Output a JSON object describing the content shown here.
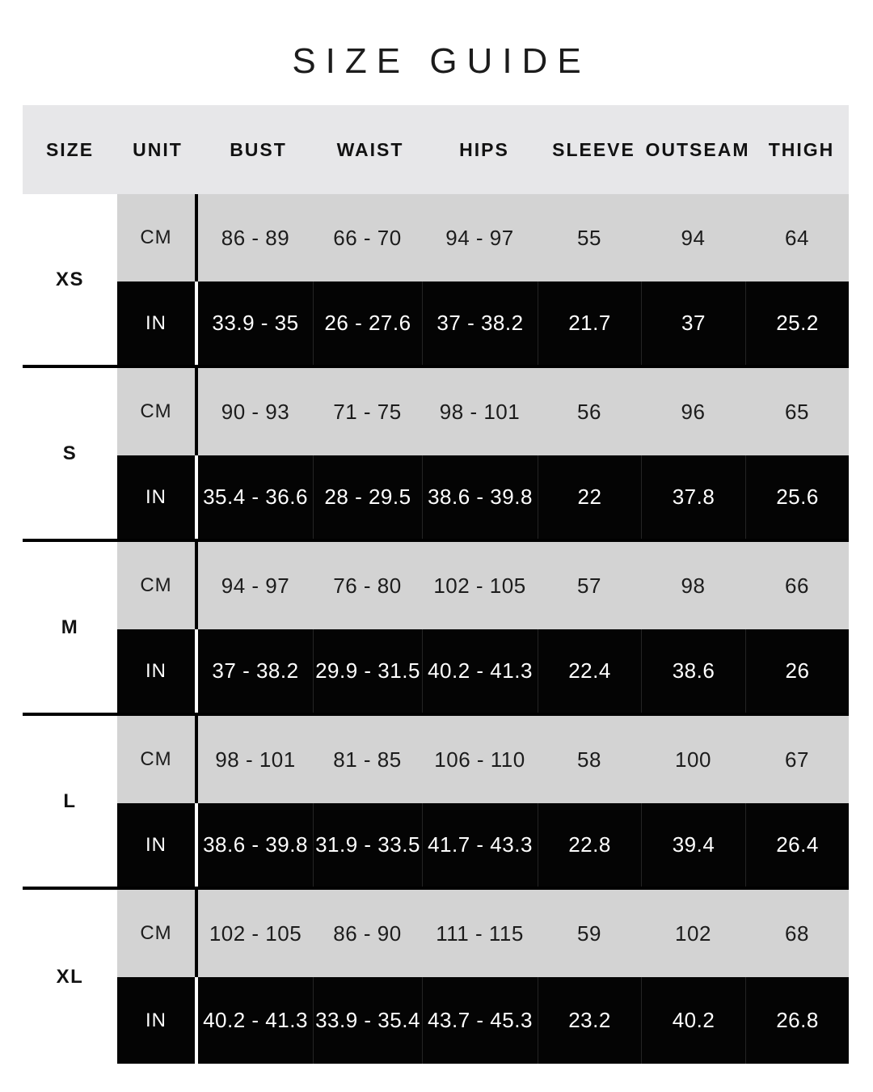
{
  "title": "SIZE GUIDE",
  "table": {
    "columns": [
      "SIZE",
      "UNIT",
      "BUST",
      "WAIST",
      "HIPS",
      "SLEEVE",
      "OUTSEAM",
      "THIGH"
    ],
    "unit_labels": {
      "cm": "CM",
      "in": "IN"
    },
    "sizes": [
      {
        "label": "XS",
        "cm": [
          "86 - 89",
          "66 - 70",
          "94 - 97",
          "55",
          "94",
          "64"
        ],
        "in": [
          "33.9 - 35",
          "26 - 27.6",
          "37 - 38.2",
          "21.7",
          "37",
          "25.2"
        ]
      },
      {
        "label": "S",
        "cm": [
          "90 - 93",
          "71 - 75",
          "98 - 101",
          "56",
          "96",
          "65"
        ],
        "in": [
          "35.4 - 36.6",
          "28 - 29.5",
          "38.6 - 39.8",
          "22",
          "37.8",
          "25.6"
        ]
      },
      {
        "label": "M",
        "cm": [
          "94 - 97",
          "76 - 80",
          "102 - 105",
          "57",
          "98",
          "66"
        ],
        "in": [
          "37 - 38.2",
          "29.9 - 31.5",
          "40.2 - 41.3",
          "22.4",
          "38.6",
          "26"
        ]
      },
      {
        "label": "L",
        "cm": [
          "98 - 101",
          "81 - 85",
          "106 - 110",
          "58",
          "100",
          "67"
        ],
        "in": [
          "38.6 - 39.8",
          "31.9 - 33.5",
          "41.7 - 43.3",
          "22.8",
          "39.4",
          "26.4"
        ]
      },
      {
        "label": "XL",
        "cm": [
          "102 - 105",
          "86 - 90",
          "111 - 115",
          "59",
          "102",
          "68"
        ],
        "in": [
          "40.2 - 41.3",
          "33.9 - 35.4",
          "43.7 - 45.3",
          "23.2",
          "40.2",
          "26.8"
        ]
      }
    ]
  },
  "colors": {
    "page_bg": "#ffffff",
    "header_bg": "#e7e7e9",
    "cm_row_bg": "#d3d3d3",
    "in_row_bg": "#040404",
    "separator": "#000000",
    "divider_dark": "#000000",
    "divider_light": "#ffffff",
    "text_dark": "#1c1c1c",
    "text_light": "#ffffff"
  }
}
